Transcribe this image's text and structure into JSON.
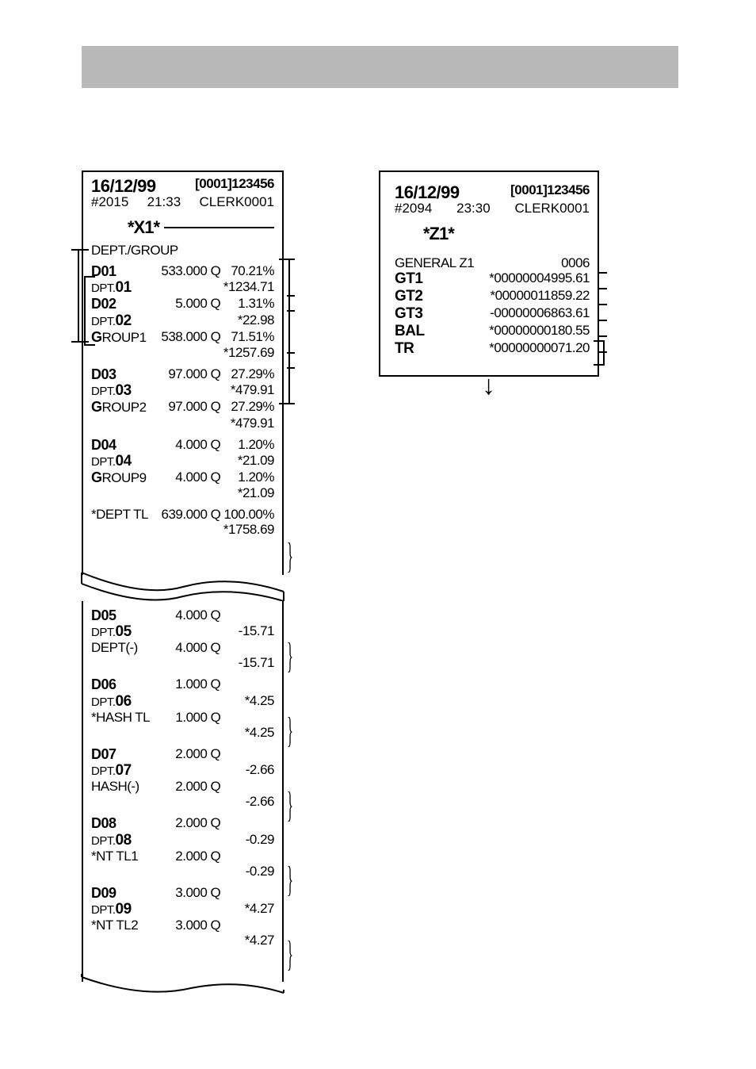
{
  "grayBar": {
    "color": "#b9b9b9"
  },
  "receiptX1": {
    "date": "16/12/99",
    "meta": "[0001]123456",
    "seq": "#2015",
    "time": "21:33",
    "clerk": "CLERK0001",
    "mode": "*X1*",
    "sectionTitle": "DEPT./GROUP",
    "groups": [
      {
        "rows": [
          {
            "c1": "D01",
            "bold": true,
            "c2": "533.000 Q",
            "c3": "70.21%"
          },
          {
            "dptPrefix": "DPT.",
            "dptNum": "01",
            "c2": "",
            "c3": "*1234.71"
          },
          {
            "c1": "D02",
            "bold": true,
            "c2": "5.000 Q",
            "c3": "1.31%"
          },
          {
            "dptPrefix": "DPT.",
            "dptNum": "02",
            "c2": "",
            "c3": "*22.98"
          },
          {
            "grpPrefix": "G",
            "grpRest": "ROUP1",
            "c2": "538.000 Q",
            "c3": "71.51%"
          },
          {
            "c1": "",
            "c2": "",
            "c3": "*1257.69"
          }
        ]
      },
      {
        "rows": [
          {
            "c1": "D03",
            "bold": true,
            "c2": "97.000 Q",
            "c3": "27.29%"
          },
          {
            "dptPrefix": "DPT.",
            "dptNum": "03",
            "c2": "",
            "c3": "*479.91"
          },
          {
            "grpPrefix": "G",
            "grpRest": "ROUP2",
            "c2": "97.000 Q",
            "c3": "27.29%"
          },
          {
            "c1": "",
            "c2": "",
            "c3": "*479.91"
          }
        ]
      },
      {
        "rows": [
          {
            "c1": "D04",
            "bold": true,
            "c2": "4.000 Q",
            "c3": "1.20%"
          },
          {
            "dptPrefix": "DPT.",
            "dptNum": "04",
            "c2": "",
            "c3": "*21.09"
          },
          {
            "grpPrefix": "G",
            "grpRest": "ROUP9",
            "c2": "4.000 Q",
            "c3": "1.20%"
          },
          {
            "c1": "",
            "c2": "",
            "c3": "*21.09"
          }
        ]
      },
      {
        "rows": [
          {
            "c1": "*DEPT TL",
            "c2": "639.000 Q",
            "c3": "100.00%"
          },
          {
            "c1": "",
            "c2": "",
            "c3": "*1758.69"
          }
        ]
      }
    ],
    "lower": [
      {
        "rows": [
          {
            "c1": "D05",
            "bold": true,
            "c2": "4.000 Q",
            "c3": ""
          },
          {
            "dptPrefix": "DPT.",
            "dptNum": "05",
            "c2": "",
            "c3": "-15.71"
          },
          {
            "c1": "DEPT(-)",
            "c2": "4.000 Q",
            "c3": ""
          },
          {
            "c1": "",
            "c2": "",
            "c3": "-15.71"
          }
        ]
      },
      {
        "rows": [
          {
            "c1": "D06",
            "bold": true,
            "c2": "1.000 Q",
            "c3": ""
          },
          {
            "dptPrefix": "DPT.",
            "dptNum": "06",
            "c2": "",
            "c3": "*4.25"
          },
          {
            "c1": "*HASH TL",
            "c2": "1.000 Q",
            "c3": ""
          },
          {
            "c1": "",
            "c2": "",
            "c3": "*4.25"
          }
        ]
      },
      {
        "rows": [
          {
            "c1": "D07",
            "bold": true,
            "c2": "2.000 Q",
            "c3": ""
          },
          {
            "dptPrefix": "DPT.",
            "dptNum": "07",
            "c2": "",
            "c3": "-2.66"
          },
          {
            "c1": "HASH(-)",
            "c2": "2.000 Q",
            "c3": ""
          },
          {
            "c1": "",
            "c2": "",
            "c3": "-2.66"
          }
        ]
      },
      {
        "rows": [
          {
            "c1": "D08",
            "bold": true,
            "c2": "2.000 Q",
            "c3": ""
          },
          {
            "dptPrefix": "DPT.",
            "dptNum": "08",
            "c2": "",
            "c3": "-0.29"
          },
          {
            "c1": "*NT TL1",
            "c2": "2.000 Q",
            "c3": ""
          },
          {
            "c1": "",
            "c2": "",
            "c3": "-0.29"
          }
        ]
      },
      {
        "rows": [
          {
            "c1": "D09",
            "bold": true,
            "c2": "3.000 Q",
            "c3": ""
          },
          {
            "dptPrefix": "DPT.",
            "dptNum": "09",
            "c2": "",
            "c3": "*4.27"
          },
          {
            "c1": "*NT TL2",
            "c2": "3.000 Q",
            "c3": ""
          },
          {
            "c1": "",
            "c2": "",
            "c3": "*4.27"
          }
        ]
      }
    ]
  },
  "receiptZ1": {
    "date": "16/12/99",
    "meta": "[0001]123456",
    "seq": "#2094",
    "time": "23:30",
    "clerk": "CLERK0001",
    "mode": "*Z1*",
    "rows": [
      {
        "lbl": "GENERAL Z1",
        "lblPlain": true,
        "val": "0006"
      },
      {
        "lbl": "GT1",
        "val": "*00000004995.61"
      },
      {
        "lbl": "GT2",
        "val": "*00000011859.22"
      },
      {
        "lbl": "GT3",
        "val": "-00000006863.61"
      },
      {
        "lbl": "BAL",
        "val": "*00000000180.55"
      },
      {
        "lbl": "TR",
        "val": "*00000000071.20"
      }
    ]
  }
}
